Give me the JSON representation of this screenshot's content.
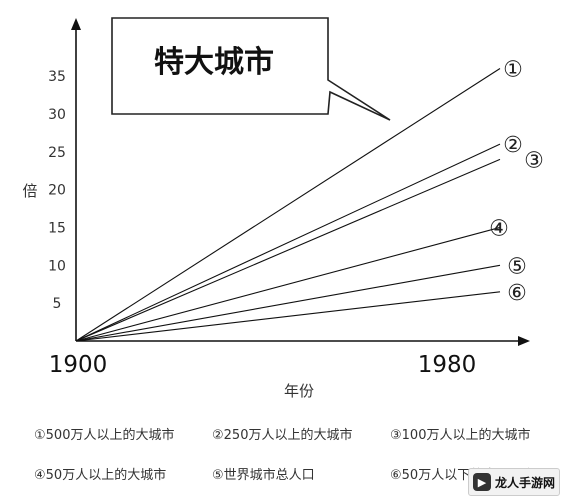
{
  "chart_data": {
    "type": "line",
    "title": "特大城市",
    "ylabel": "倍",
    "xlabel": "年份",
    "y_ticks": [
      "35",
      "30",
      "25",
      "20",
      "15",
      "10",
      "5"
    ],
    "x_ticks": [
      "1900",
      "1980"
    ],
    "ylim": [
      0,
      35
    ],
    "xlim": [
      1900,
      1980
    ],
    "series": [
      {
        "name": "①500万人以上的大城市",
        "marker": "①",
        "x": [
          1900,
          1980
        ],
        "values": [
          0,
          36
        ]
      },
      {
        "name": "②250万人以上的大城市",
        "marker": "②",
        "x": [
          1900,
          1980
        ],
        "values": [
          0,
          26
        ]
      },
      {
        "name": "③100万人以上的大城市",
        "marker": "③",
        "x": [
          1900,
          1980
        ],
        "values": [
          0,
          24
        ]
      },
      {
        "name": "④50万人以上的大城市",
        "marker": "④",
        "x": [
          1900,
          1980
        ],
        "values": [
          0,
          15
        ]
      },
      {
        "name": "⑤世界城市总人口",
        "marker": "⑤",
        "x": [
          1900,
          1980
        ],
        "values": [
          0,
          10
        ]
      },
      {
        "name": "⑥50万人以下的中小城市",
        "marker": "⑥",
        "x": [
          1900,
          1980
        ],
        "values": [
          0,
          6.5
        ]
      }
    ],
    "grid": false
  },
  "watermark": {
    "text": "龙人手游网"
  }
}
